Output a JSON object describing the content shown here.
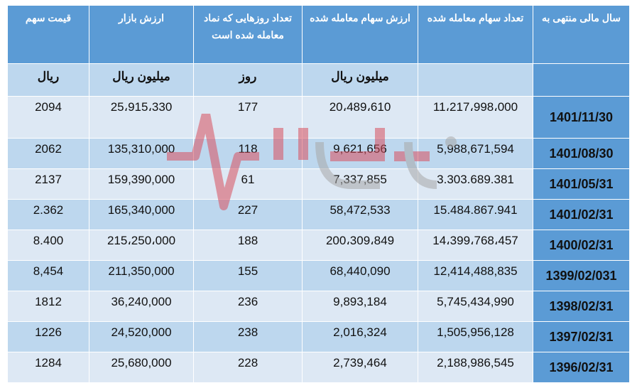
{
  "headers": [
    "قیمت سهم",
    "ارزش بازار",
    "تعداد روزهایی که نماد معامله شده است",
    "ارزش سهام معامله شده",
    "تعداد سهام معامله شده",
    "سال مالی منتهی به"
  ],
  "units": [
    "ریال",
    "میلیون ریال",
    "روز",
    "میلیون ریال",
    "",
    ""
  ],
  "rows": [
    {
      "price": "2094",
      "market_value": "25،915،330",
      "days": "177",
      "traded_value": "20،489،610",
      "traded_shares": "11،217،998،000",
      "year": "1401/11/30"
    },
    {
      "price": "2062",
      "market_value": "135,310,000",
      "days": "118",
      "traded_value": "9,621,656",
      "traded_shares": "5,988,671,594",
      "year": "1401/08/30"
    },
    {
      "price": "2137",
      "market_value": "159,390,000",
      "days": "61",
      "traded_value": "7,337,855",
      "traded_shares": "3.303.689.381",
      "year": "1401/05/31"
    },
    {
      "price": "2.362",
      "market_value": "165,340,000",
      "days": "227",
      "traded_value": "58,472,533",
      "traded_shares": "15.484.867.941",
      "year": "1401/02/31"
    },
    {
      "price": "8.400",
      "market_value": "215،250،000",
      "days": "188",
      "traded_value": "200،309،849",
      "traded_shares": "14،399،768،457",
      "year": "1400/02/31"
    },
    {
      "price": "8,454",
      "market_value": "211,350,000",
      "days": "155",
      "traded_value": "68,440,090",
      "traded_shares": "12,414,488,835",
      "year": "1399/02/031"
    },
    {
      "price": "1812",
      "market_value": "36,240,000",
      "days": "236",
      "traded_value": "9,893,184",
      "traded_shares": "5,745,434,990",
      "year": "1398/02/31"
    },
    {
      "price": "1226",
      "market_value": "24,520,000",
      "days": "238",
      "traded_value": "2,016,324",
      "traded_shares": "1,505,956,128",
      "year": "1397/02/31"
    },
    {
      "price": "1284",
      "market_value": "25,680,000",
      "days": "228",
      "traded_value": "2,739,464",
      "traded_shares": "2,188,986,545",
      "year": "1396/02/31"
    }
  ],
  "colors": {
    "header": "#5b9bd5",
    "row_light": "#dde8f4",
    "row_dark": "#bdd7ee",
    "watermark_red": "#d9505f"
  }
}
